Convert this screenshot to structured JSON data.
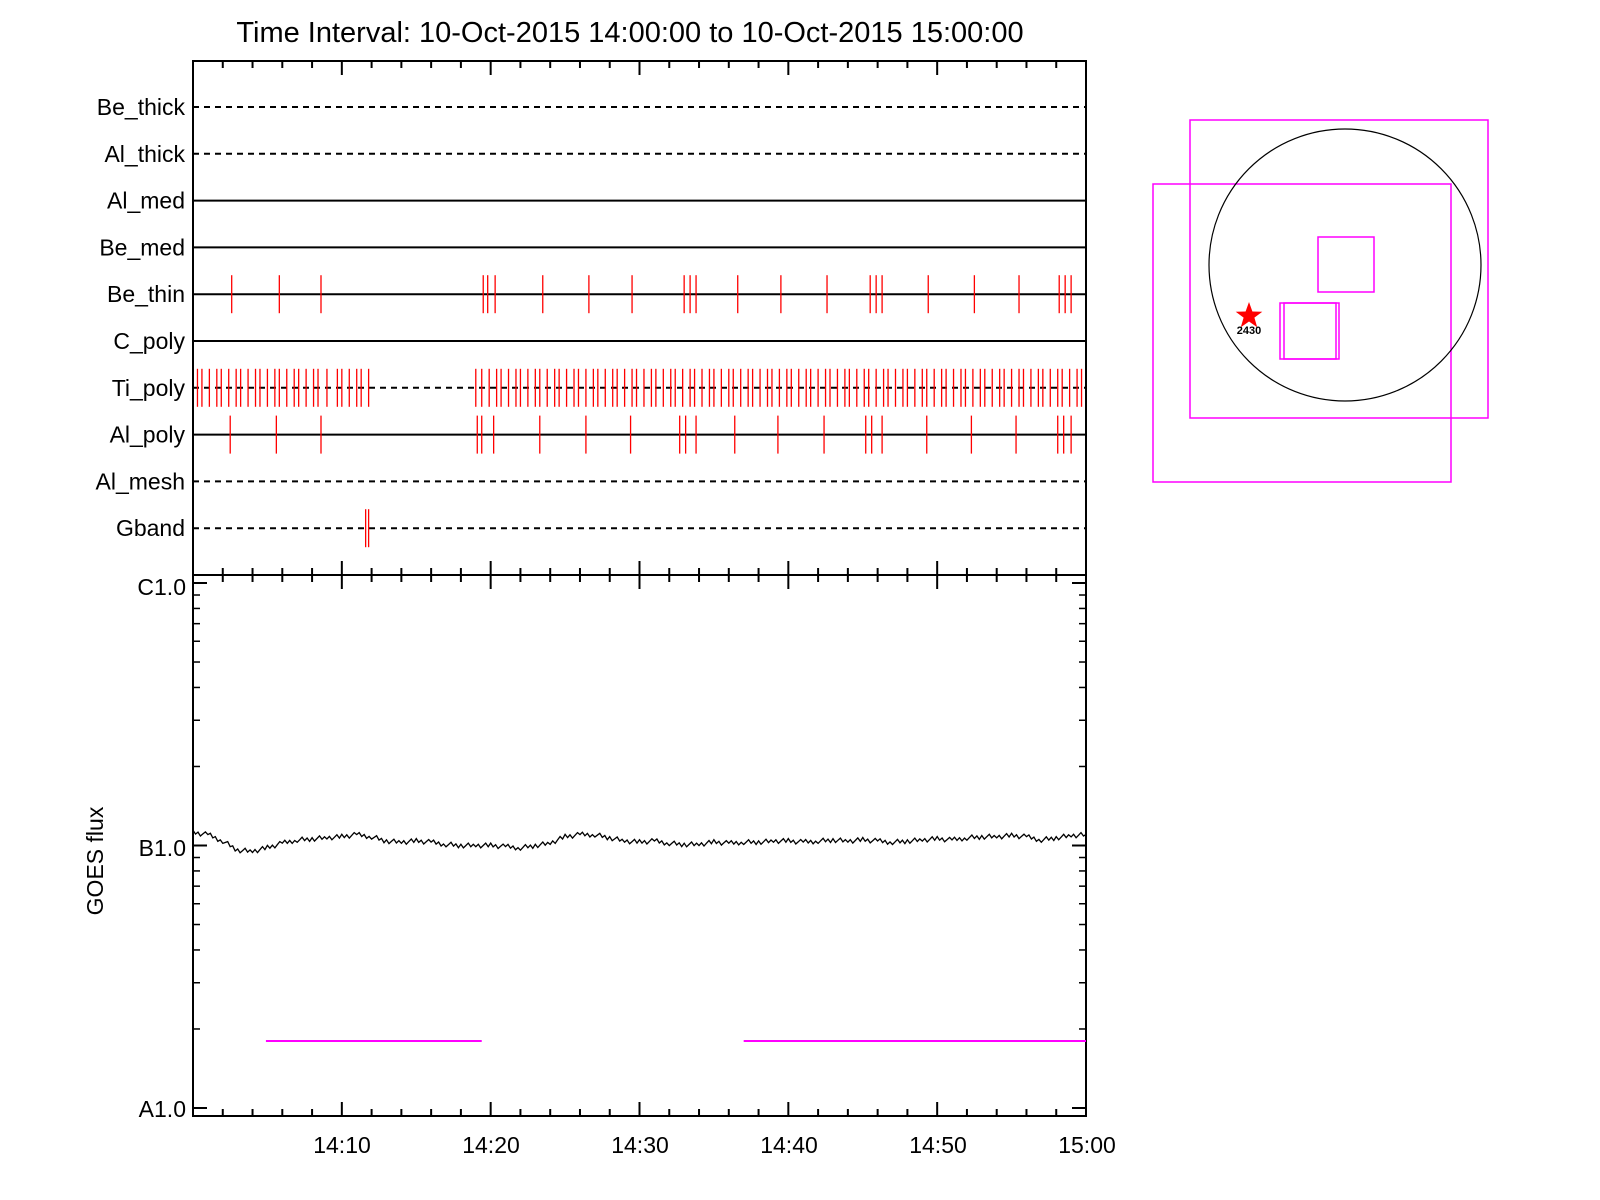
{
  "chart_data": [
    {
      "type": "timeline",
      "title": "Time Interval: 10-Oct-2015 14:00:00 to 10-Oct-2015 15:00:00",
      "xlim": [
        "14:00",
        "15:00"
      ],
      "x_unit": "minutes after 14:00",
      "rows": [
        {
          "name": "Be_thick",
          "line": "dashed",
          "marks": []
        },
        {
          "name": "Al_thick",
          "line": "dashed",
          "marks": []
        },
        {
          "name": "Al_med",
          "line": "solid",
          "marks": []
        },
        {
          "name": "Be_med",
          "line": "solid",
          "marks": []
        },
        {
          "name": "Be_thin",
          "line": "solid",
          "marks": [
            2.6,
            5.8,
            8.6,
            19.5,
            19.8,
            20.3,
            23.5,
            26.6,
            29.5,
            33.0,
            33.4,
            33.8,
            36.6,
            39.5,
            42.6,
            45.5,
            45.9,
            46.3,
            49.4,
            52.5,
            55.5,
            58.2,
            58.6,
            59.0
          ]
        },
        {
          "name": "C_poly",
          "line": "solid",
          "marks": []
        },
        {
          "name": "Ti_poly",
          "line": "dashed",
          "marks": [
            0.3,
            0.6,
            1.1,
            1.6,
            1.9,
            2.4,
            2.9,
            3.2,
            3.7,
            4.2,
            4.5,
            5.0,
            5.5,
            5.8,
            6.3,
            6.8,
            7.1,
            7.6,
            8.1,
            8.4,
            9.0,
            9.7,
            10.0,
            10.5,
            11.0,
            11.3,
            11.8,
            19.0,
            19.4,
            19.9,
            20.4,
            20.7,
            21.2,
            21.7,
            22.0,
            22.5,
            23.0,
            23.3,
            23.8,
            24.3,
            24.6,
            25.1,
            25.6,
            25.9,
            26.4,
            26.9,
            27.2,
            27.7,
            28.2,
            28.5,
            29.0,
            29.5,
            29.8,
            30.3,
            30.8,
            31.1,
            31.6,
            32.1,
            32.4,
            32.9,
            33.4,
            33.7,
            34.2,
            34.7,
            35.0,
            35.5,
            36.0,
            36.3,
            36.8,
            37.3,
            37.6,
            38.1,
            38.6,
            38.9,
            39.4,
            39.9,
            40.2,
            40.7,
            41.2,
            41.5,
            42.0,
            42.5,
            42.8,
            43.3,
            43.8,
            44.1,
            44.6,
            45.1,
            45.4,
            45.9,
            46.4,
            46.7,
            47.2,
            47.7,
            48.0,
            48.5,
            49.0,
            49.3,
            49.8,
            50.3,
            50.6,
            51.1,
            51.6,
            51.9,
            52.4,
            52.9,
            53.2,
            53.7,
            54.2,
            54.5,
            55.0,
            55.5,
            55.8,
            56.3,
            56.8,
            57.1,
            57.6,
            58.1,
            58.4,
            58.9,
            59.4,
            59.7
          ]
        },
        {
          "name": "Al_poly",
          "line": "solid",
          "marks": [
            2.5,
            5.6,
            8.6,
            19.1,
            19.4,
            20.2,
            23.3,
            26.4,
            29.4,
            32.7,
            33.1,
            33.8,
            36.4,
            39.3,
            42.4,
            45.2,
            45.6,
            46.3,
            49.3,
            52.3,
            55.3,
            58.1,
            58.5,
            59.0
          ]
        },
        {
          "name": "Al_mesh",
          "line": "dashed",
          "marks": []
        },
        {
          "name": "Gband",
          "line": "dashed",
          "marks": [
            11.6,
            11.8
          ]
        }
      ]
    },
    {
      "type": "line",
      "ylabel": "GOES flux",
      "yscale": "log",
      "ylim": [
        1e-08,
        1e-06
      ],
      "yticklabels": [
        {
          "value": 1e-06,
          "label": "C1.0"
        },
        {
          "value": 1e-07,
          "label": "B1.0"
        },
        {
          "value": 1e-08,
          "label": "A1.0"
        }
      ],
      "xlim": [
        "14:00",
        "15:00"
      ],
      "xticklabels": [
        "14:10",
        "14:20",
        "14:30",
        "14:40",
        "14:50",
        "15:00"
      ],
      "series": [
        {
          "color": "#000000",
          "x_minutes": [
            0,
            1,
            2,
            3,
            4,
            5,
            6,
            7,
            8,
            9,
            10,
            11,
            12,
            13,
            14,
            15,
            16,
            17,
            18,
            19,
            20,
            21,
            22,
            23,
            24,
            25,
            26,
            27,
            28,
            29,
            30,
            31,
            32,
            33,
            34,
            35,
            36,
            37,
            38,
            39,
            40,
            41,
            42,
            43,
            44,
            45,
            46,
            47,
            48,
            49,
            50,
            51,
            52,
            53,
            54,
            55,
            56,
            57,
            58,
            59,
            60
          ],
          "y": [
            1.12e-07,
            1.1e-07,
            1.04e-07,
            9.6e-08,
            9.5e-08,
            9.8e-08,
            1.02e-07,
            1.05e-07,
            1.06e-07,
            1.07e-07,
            1.08e-07,
            1.1e-07,
            1.08e-07,
            1.04e-07,
            1.03e-07,
            1.04e-07,
            1.03e-07,
            1.01e-07,
            1e-07,
            1e-07,
            1e-07,
            9.9e-08,
            9.8e-08,
            1e-07,
            1.02e-07,
            1.08e-07,
            1.1e-07,
            1.1e-07,
            1.07e-07,
            1.04e-07,
            1.03e-07,
            1.04e-07,
            1.02e-07,
            1.01e-07,
            1.01e-07,
            1.03e-07,
            1.02e-07,
            1.03e-07,
            1.03e-07,
            1.04e-07,
            1.04e-07,
            1.03e-07,
            1.04e-07,
            1.05e-07,
            1.04e-07,
            1.05e-07,
            1.04e-07,
            1.03e-07,
            1.04e-07,
            1.05e-07,
            1.06e-07,
            1.05e-07,
            1.07e-07,
            1.08e-07,
            1.08e-07,
            1.09e-07,
            1.08e-07,
            1.05e-07,
            1.07e-07,
            1.09e-07,
            1.1e-07
          ]
        },
        {
          "color": "#ff00ff",
          "y_constant": 1.8e-08,
          "segments_minutes": [
            [
              4.9,
              19.4
            ],
            [
              37.0,
              60.0
            ]
          ]
        }
      ]
    },
    {
      "type": "solar-map",
      "label": "2430",
      "colors": {
        "boxes": "#ff00ff",
        "star": "#ff0000",
        "disk": "#000000"
      }
    }
  ]
}
